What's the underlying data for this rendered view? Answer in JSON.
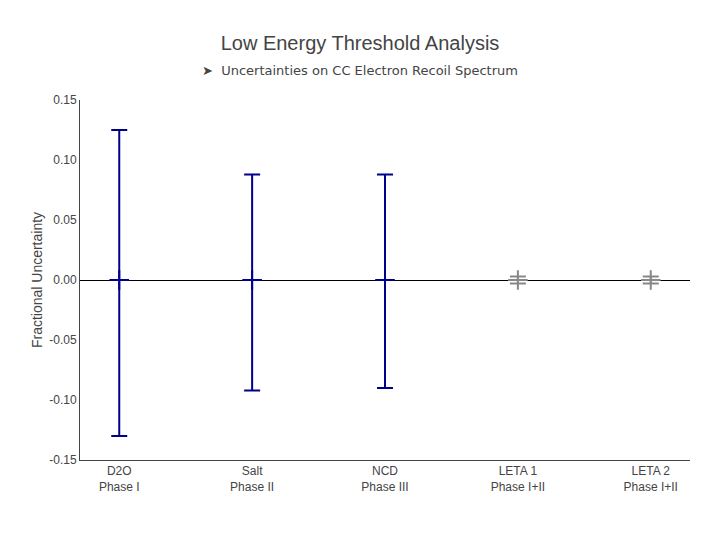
{
  "chart_data": {
    "type": "errorbar",
    "title": "Low Energy Threshold Analysis",
    "subtitle": "➤  Uncertainties on CC Electron Recoil Spectrum",
    "ylabel": "Fractional Uncertainty",
    "categories": [
      "D2O\nPhase I",
      "Salt\nPhase II",
      "NCD\nPhase III",
      "LETA 1\nPhase I+II",
      "LETA 2\nPhase I+II"
    ],
    "values": [
      0.0,
      0.0,
      0.0,
      0.0,
      0.0
    ],
    "error_upper": [
      0.125,
      0.088,
      0.088,
      0.003,
      0.003
    ],
    "error_lower": [
      0.13,
      0.092,
      0.09,
      0.003,
      0.003
    ],
    "colors": [
      "#00008b",
      "#00008b",
      "#00008b",
      "#888888",
      "#888888"
    ],
    "marker": "cross",
    "ylim": [
      -0.15,
      0.15
    ],
    "yticks": [
      -0.15,
      {
        "value": -0.1,
        "label": "-0.10"
      },
      -0.05,
      {
        "value": 0,
        "label": "0.00"
      },
      0.05,
      {
        "value": 0.1,
        "label": "0.10"
      },
      0.15
    ],
    "grid": false
  }
}
